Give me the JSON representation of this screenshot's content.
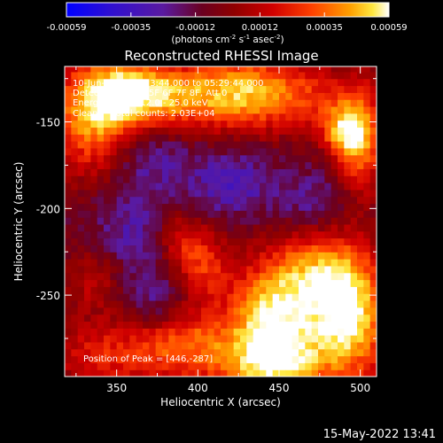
{
  "chart_data": {
    "type": "heatmap",
    "title": "Reconstructed RHESSI Image",
    "xlabel": "Heliocentric X (arcsec)",
    "ylabel": "Heliocentric Y (arcsec)",
    "xlim": [
      318,
      510
    ],
    "ylim": [
      -297,
      -118
    ],
    "xticks": [
      350,
      400,
      450,
      500
    ],
    "yticks": [
      -150,
      -200,
      -250
    ],
    "colorbar": {
      "range": [
        -0.00059,
        0.00059
      ],
      "ticks": [
        "-0.00059",
        "-0.00035",
        "-0.00012",
        "0.00012",
        "0.00035",
        "0.00059"
      ],
      "label_parts": [
        "(photons cm",
        "-2",
        " s",
        "-1",
        " asec",
        "-2",
        ")"
      ],
      "colormap": [
        "#0000ff",
        "#4000c0",
        "#5a1aa0",
        "#700000",
        "#c80000",
        "#ff3000",
        "#ff9000",
        "#ffe040",
        "#ffffff"
      ]
    },
    "annotations": [
      "10-Jun-2014 05:23:44.000 to 05:29:44.000",
      "Detectors: 3F 4F 5F 6F 7F 8F, Att 0",
      "Energy Range: 12.0 - 25.0 keV",
      "Clean     Total counts: 2.03E+04"
    ],
    "peak_label": "Position of Peak = [446,-287]",
    "peak_position": [
      446,
      -287
    ],
    "hotspots": [
      {
        "x": 336,
        "y": -148,
        "amp": 0.0005,
        "sx": 20,
        "sy": 24
      },
      {
        "x": 360,
        "y": -132,
        "amp": 0.00042,
        "sx": 22,
        "sy": 14
      },
      {
        "x": 395,
        "y": -135,
        "amp": 0.00035,
        "sx": 28,
        "sy": 14
      },
      {
        "x": 432,
        "y": -132,
        "amp": 0.0004,
        "sx": 22,
        "sy": 16
      },
      {
        "x": 470,
        "y": -135,
        "amp": 0.00025,
        "sx": 22,
        "sy": 14
      },
      {
        "x": 500,
        "y": -160,
        "amp": 0.0005,
        "sx": 10,
        "sy": 22
      },
      {
        "x": 488,
        "y": -155,
        "amp": 0.00038,
        "sx": 10,
        "sy": 10
      },
      {
        "x": 390,
        "y": -218,
        "amp": 0.00028,
        "sx": 12,
        "sy": 12
      },
      {
        "x": 405,
        "y": -235,
        "amp": 0.0003,
        "sx": 12,
        "sy": 14
      },
      {
        "x": 335,
        "y": -240,
        "amp": 0.00022,
        "sx": 14,
        "sy": 14
      },
      {
        "x": 340,
        "y": -285,
        "amp": 0.0003,
        "sx": 22,
        "sy": 14
      },
      {
        "x": 390,
        "y": -278,
        "amp": 0.0004,
        "sx": 22,
        "sy": 16
      },
      {
        "x": 446,
        "y": -287,
        "amp": 0.0007,
        "sx": 24,
        "sy": 18
      },
      {
        "x": 470,
        "y": -240,
        "amp": 0.00055,
        "sx": 24,
        "sy": 22
      },
      {
        "x": 495,
        "y": -265,
        "amp": 0.00052,
        "sx": 16,
        "sy": 26
      },
      {
        "x": 440,
        "y": -255,
        "amp": 0.0003,
        "sx": 14,
        "sy": 14
      },
      {
        "x": 368,
        "y": -170,
        "amp": -0.0002,
        "sx": 18,
        "sy": 14
      },
      {
        "x": 360,
        "y": -215,
        "amp": -0.00018,
        "sx": 20,
        "sy": 18
      },
      {
        "x": 420,
        "y": -185,
        "amp": -0.00022,
        "sx": 16,
        "sy": 14
      },
      {
        "x": 375,
        "y": -255,
        "amp": -0.00018,
        "sx": 14,
        "sy": 12
      },
      {
        "x": 470,
        "y": -200,
        "amp": -0.0002,
        "sx": 18,
        "sy": 14
      }
    ]
  },
  "footer": {
    "timestamp": "15-May-2022 13:41"
  }
}
